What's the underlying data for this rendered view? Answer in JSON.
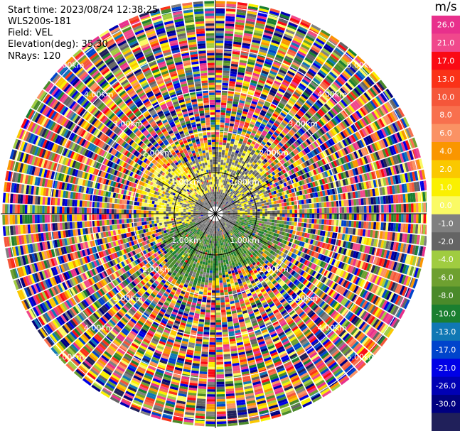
{
  "header": {
    "start_time": "Start time: 2023/08/24 12:38:25",
    "instrument": "WLS200s-181",
    "field": "Field: VEL",
    "elevation": "Elevation(deg): 35.30",
    "nrays": "NRays: 120"
  },
  "colorbar": {
    "unit": "m/s",
    "ticks": [
      "26.0",
      "21.0",
      "17.0",
      "13.0",
      "10.0",
      "8.0",
      "6.0",
      "4.0",
      "2.0",
      "1.0",
      "0.0",
      "-1.0",
      "-2.0",
      "-4.0",
      "-6.0",
      "-8.0",
      "-10.0",
      "-13.0",
      "-17.0",
      "-21.0",
      "-26.0",
      "-30.0"
    ],
    "colors": [
      "#e8308c",
      "#f0488c",
      "#fa0a14",
      "#fa3218",
      "#f5563a",
      "#f8704e",
      "#fa9264",
      "#fa9600",
      "#fac800",
      "#faf000",
      "#fafa64",
      "#808080",
      "#646464",
      "#a0cc40",
      "#6ea030",
      "#4a8a2a",
      "#1a7f30",
      "#1078b4",
      "#0044cc",
      "#0000e6",
      "#0000b4",
      "#000080",
      "#20205a"
    ]
  },
  "chart_data": {
    "type": "ppi",
    "field": "VEL",
    "range_ring_labels": [
      "1.00km",
      "2.00km",
      "3.00km",
      "4.00km",
      "5.00km"
    ],
    "range_rings_km": [
      1,
      2,
      3,
      4,
      5
    ],
    "spokes_deg": [
      0,
      30,
      60,
      90,
      120,
      150,
      180,
      210,
      240,
      270,
      300,
      330
    ],
    "nrays": 120,
    "max_range_km": 5.2
  }
}
